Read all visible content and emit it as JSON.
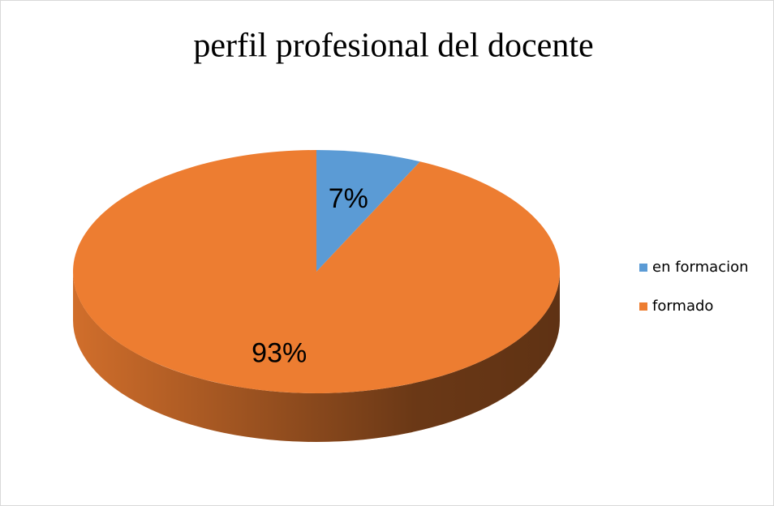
{
  "chart_data": {
    "type": "pie",
    "title": "perfil profesional del docente",
    "categories": [
      "en formacion",
      "formado"
    ],
    "values": [
      7,
      93
    ],
    "value_labels": [
      "7%",
      "93%"
    ],
    "colors": [
      "#5b9bd5",
      "#ed7d31"
    ],
    "legend": "right"
  }
}
